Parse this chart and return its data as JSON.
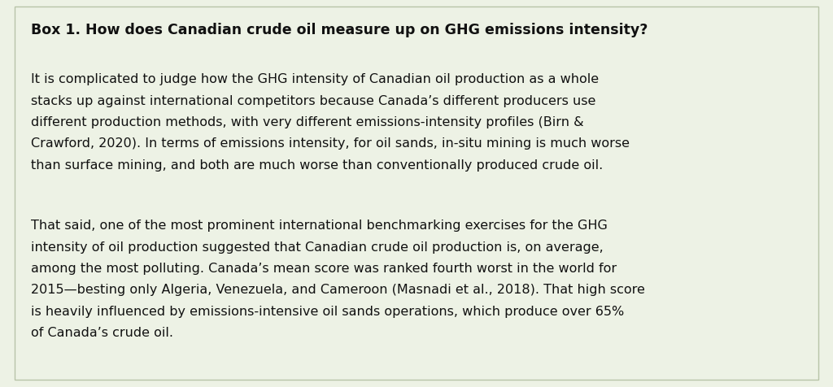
{
  "background_color": "#edf2e5",
  "border_color": "#b8c4a8",
  "title": "Box 1. How does Canadian crude oil measure up on GHG emissions intensity?",
  "title_fontsize": 12.5,
  "title_fontweight": "bold",
  "body_fontsize": 11.5,
  "body_color": "#111111",
  "paragraph1_lines": [
    "It is complicated to judge how the GHG intensity of Canadian oil production as a whole",
    "stacks up against international competitors because Canada’s different producers use",
    "different production methods, with very different emissions-intensity profiles (Birn &",
    "Crawford, 2020). In terms of emissions intensity, for oil sands, in-situ mining is much worse",
    "than surface mining, and both are much worse than conventionally produced crude oil."
  ],
  "paragraph2_lines": [
    "That said, one of the most prominent international benchmarking exercises for the GHG",
    "intensity of oil production suggested that Canadian crude oil production is, on average,",
    "among the most polluting. Canada’s mean score was ranked fourth worst in the world for",
    "2015—besting only Algeria, Venezuela, and Cameroon (Masnadi et al., 2018). That high score",
    "is heavily influenced by emissions-intensive oil sands operations, which produce over 65%",
    "of Canada’s crude oil."
  ],
  "fig_width": 10.24,
  "fig_height": 4.77,
  "dpi": 100
}
